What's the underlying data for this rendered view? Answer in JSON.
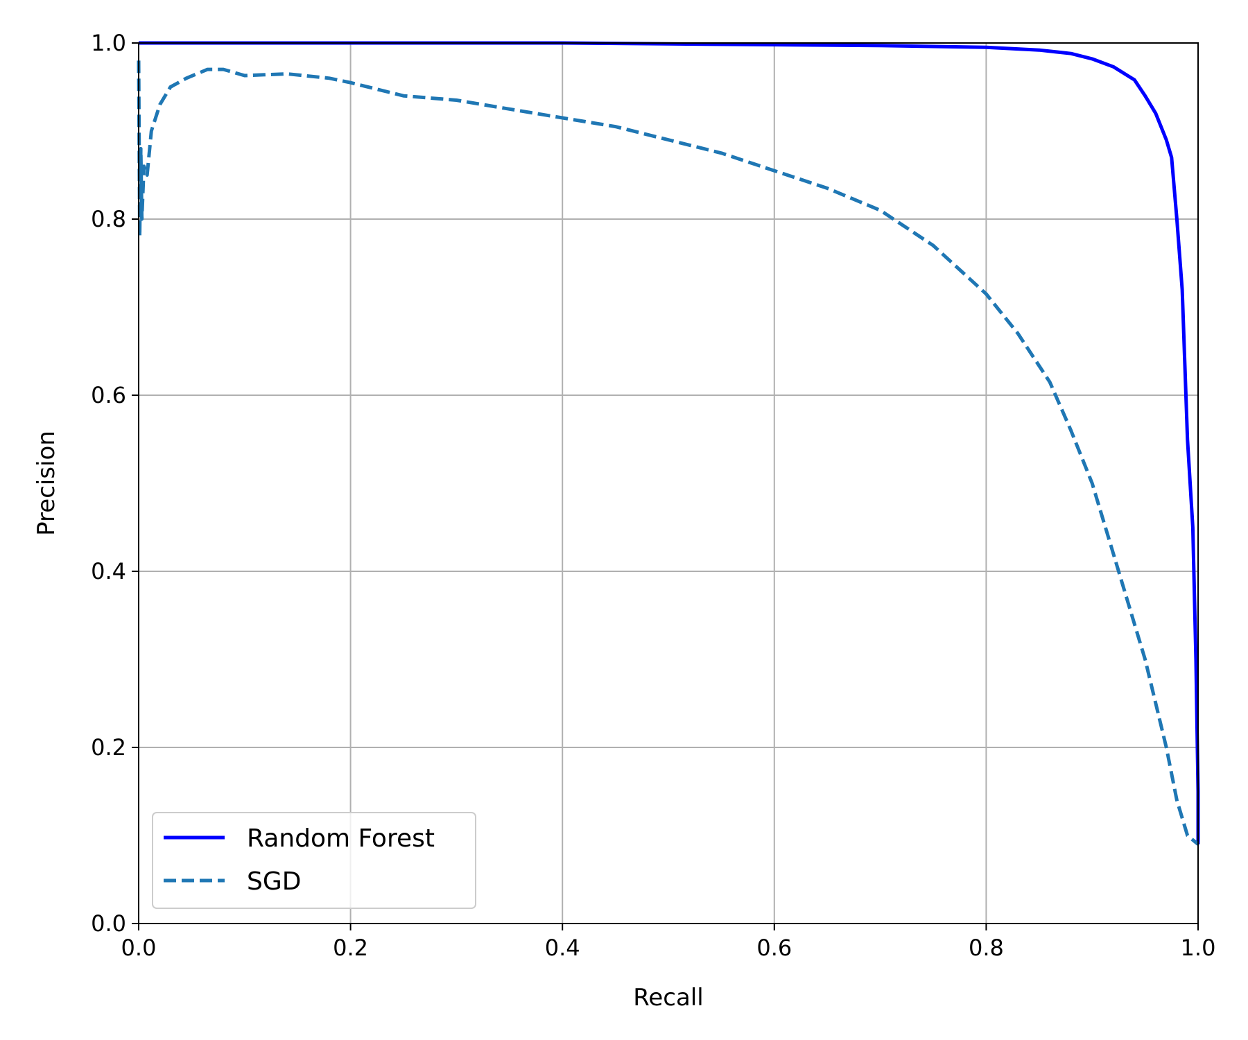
{
  "chart_data": {
    "type": "line",
    "title": "",
    "xlabel": "Recall",
    "ylabel": "Precision",
    "xlim": [
      0.0,
      1.0
    ],
    "ylim": [
      0.0,
      1.0
    ],
    "grid": true,
    "legend_position": "lower-left",
    "x_ticks": [
      "0.0",
      "0.2",
      "0.4",
      "0.6",
      "0.8",
      "1.0"
    ],
    "y_ticks": [
      "0.0",
      "0.2",
      "0.4",
      "0.6",
      "0.8",
      "1.0"
    ],
    "series": [
      {
        "name": "Random Forest",
        "color": "#0000ff",
        "style": "solid",
        "x": [
          0.0,
          0.1,
          0.2,
          0.3,
          0.4,
          0.5,
          0.6,
          0.7,
          0.8,
          0.85,
          0.88,
          0.9,
          0.92,
          0.94,
          0.95,
          0.96,
          0.97,
          0.975,
          0.98,
          0.985,
          0.99,
          0.995,
          0.998,
          1.0,
          1.0
        ],
        "y": [
          1.0,
          1.0,
          1.0,
          1.0,
          1.0,
          0.999,
          0.998,
          0.997,
          0.995,
          0.992,
          0.988,
          0.982,
          0.973,
          0.958,
          0.94,
          0.92,
          0.89,
          0.87,
          0.8,
          0.72,
          0.55,
          0.45,
          0.3,
          0.15,
          0.09
        ]
      },
      {
        "name": "SGD",
        "color": "#1f77b4",
        "style": "dashed",
        "x": [
          0.0,
          0.001,
          0.002,
          0.003,
          0.005,
          0.008,
          0.012,
          0.02,
          0.03,
          0.045,
          0.065,
          0.08,
          0.1,
          0.14,
          0.18,
          0.2,
          0.25,
          0.3,
          0.35,
          0.4,
          0.45,
          0.5,
          0.55,
          0.6,
          0.65,
          0.7,
          0.75,
          0.8,
          0.83,
          0.86,
          0.88,
          0.9,
          0.92,
          0.94,
          0.95,
          0.96,
          0.97,
          0.98,
          0.99,
          1.0
        ],
        "y": [
          0.98,
          0.78,
          0.88,
          0.8,
          0.86,
          0.85,
          0.9,
          0.93,
          0.95,
          0.96,
          0.97,
          0.97,
          0.963,
          0.965,
          0.96,
          0.955,
          0.94,
          0.935,
          0.925,
          0.915,
          0.905,
          0.89,
          0.875,
          0.855,
          0.835,
          0.81,
          0.77,
          0.715,
          0.67,
          0.615,
          0.56,
          0.5,
          0.42,
          0.34,
          0.3,
          0.25,
          0.2,
          0.14,
          0.1,
          0.09
        ]
      }
    ]
  }
}
